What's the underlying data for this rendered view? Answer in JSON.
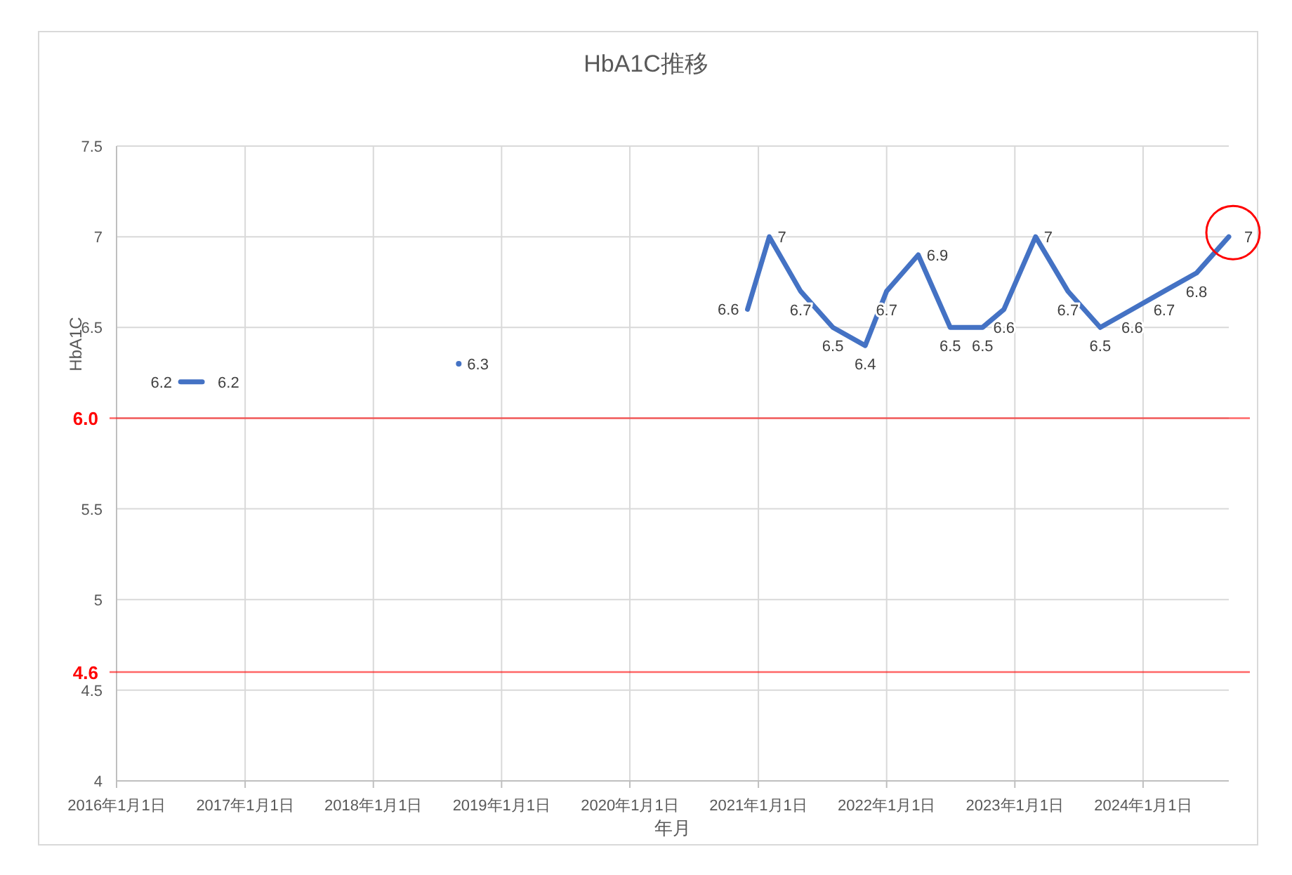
{
  "chart_data": {
    "type": "line",
    "title": "HbA1C推移",
    "xlabel": "年月",
    "ylabel": "HbA1C",
    "series": [
      {
        "color": "#4472c4",
        "x": [
          "2016-07",
          "2016-09"
        ],
        "values": [
          6.2,
          6.2
        ]
      },
      {
        "color": "#4472c4",
        "x": [
          "2018-09"
        ],
        "values": [
          6.3
        ],
        "marker": "circle"
      },
      {
        "color": "#4472c4",
        "x": [
          "2020-12",
          "2021-02",
          "2021-05",
          "2021-08",
          "2021-11",
          "2022-01",
          "2022-04",
          "2022-07",
          "2022-10",
          "2022-12",
          "2023-03",
          "2023-06",
          "2023-09",
          "2023-12",
          "2024-03",
          "2024-06",
          "2024-09"
        ],
        "values": [
          6.6,
          7,
          6.7,
          6.5,
          6.4,
          6.7,
          6.9,
          6.5,
          6.5,
          6.6,
          7,
          6.7,
          6.5,
          6.6,
          6.7,
          6.8,
          7
        ]
      }
    ],
    "xlim": [
      "2016-01-01",
      "2024-09-01"
    ],
    "xticks": [
      {
        "value": "2016-01-01",
        "label": "2016年1月1日"
      },
      {
        "value": "2017-01-01",
        "label": "2017年1月1日"
      },
      {
        "value": "2018-01-01",
        "label": "2018年1月1日"
      },
      {
        "value": "2019-01-01",
        "label": "2019年1月1日"
      },
      {
        "value": "2020-01-01",
        "label": "2020年1月1日"
      },
      {
        "value": "2021-01-01",
        "label": "2021年1月1日"
      },
      {
        "value": "2022-01-01",
        "label": "2022年1月1日"
      },
      {
        "value": "2023-01-01",
        "label": "2023年1月1日"
      },
      {
        "value": "2024-01-01",
        "label": "2024年1月1日"
      }
    ],
    "ylim": [
      4,
      7.5
    ],
    "yticks": [
      4,
      4.5,
      5,
      5.5,
      {
        "value": 6,
        "label": null
      },
      6.5,
      7,
      7.5
    ],
    "ref_lines": [
      {
        "axis": "y",
        "value": 6.0,
        "label": "6.0",
        "color": "#ff0000"
      },
      {
        "axis": "y",
        "value": 4.6,
        "label": "4.6",
        "color": "#ff0000"
      }
    ],
    "grid": true,
    "data_labels": true,
    "marker": "none",
    "line_style": "solid"
  }
}
